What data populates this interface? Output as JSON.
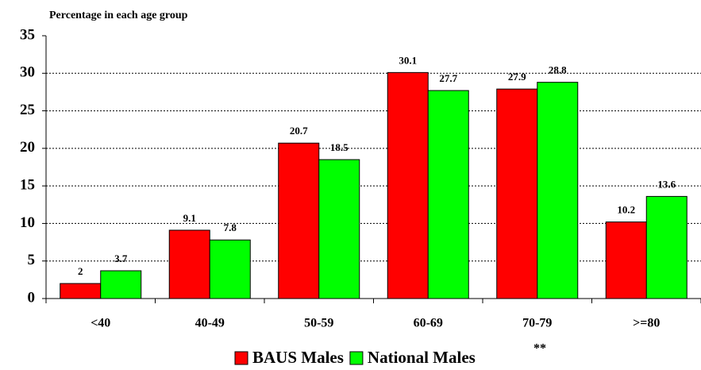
{
  "chart_data": {
    "type": "bar",
    "y_axis_label": "Percentage in each age group",
    "categories": [
      "<40",
      "40-49",
      "50-59",
      "60-69",
      "70-79",
      ">=80"
    ],
    "series": [
      {
        "name": "BAUS Males",
        "color": "#ff0000",
        "values": [
          2,
          9.1,
          20.7,
          30.1,
          27.9,
          10.2
        ]
      },
      {
        "name": "National Males",
        "color": "#00ff00",
        "values": [
          3.7,
          7.8,
          18.5,
          27.7,
          28.8,
          13.6
        ]
      }
    ],
    "annotation": "**",
    "ylim": [
      0,
      35
    ],
    "yticks": [
      0,
      5,
      10,
      15,
      20,
      25,
      30,
      35
    ],
    "grid": true,
    "legend": "bottom"
  }
}
